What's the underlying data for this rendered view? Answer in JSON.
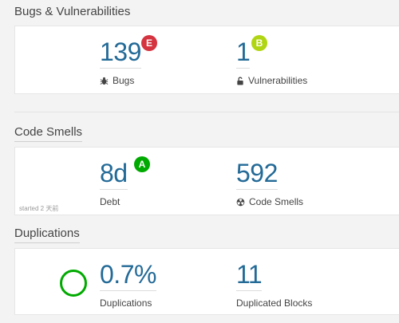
{
  "sections": {
    "bugs": {
      "title": "Bugs & Vulnerabilities",
      "bugs": {
        "value": "139",
        "label": "Bugs",
        "rating": "E",
        "rating_color": "#d4333f"
      },
      "vulnerabilities": {
        "value": "1",
        "label": "Vulnerabilities",
        "rating": "B",
        "rating_color": "#b0d513"
      }
    },
    "code_smells": {
      "title": "Code Smells",
      "debt": {
        "value": "8d",
        "label": "Debt",
        "rating": "A",
        "rating_color": "#00aa00"
      },
      "smells": {
        "value": "592",
        "label": "Code Smells"
      },
      "started": "started 2 天前"
    },
    "duplications": {
      "title": "Duplications",
      "density": {
        "value": "0.7%",
        "label": "Duplications",
        "donut_color": "#00aa00"
      },
      "blocks": {
        "value": "11",
        "label": "Duplicated Blocks"
      }
    }
  },
  "icons": {
    "bug": "bug-icon",
    "lock": "lock-open-icon",
    "smell": "radiation-icon"
  }
}
